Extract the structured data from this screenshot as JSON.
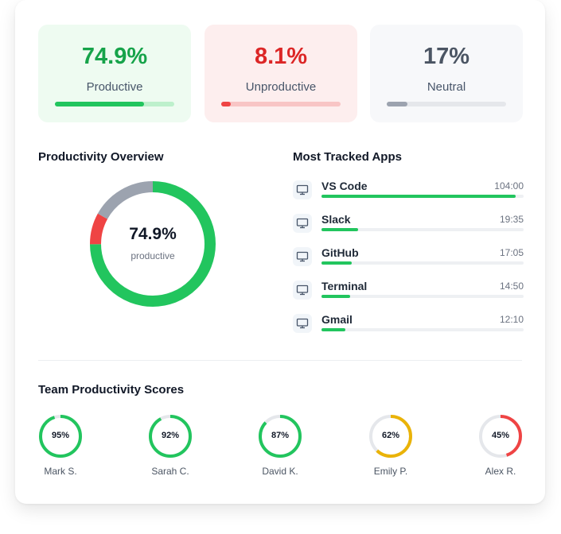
{
  "stats": {
    "productive": {
      "value": "74.9%",
      "label": "Productive",
      "fraction": 0.749,
      "color": "#16a34a"
    },
    "unproductive": {
      "value": "8.1%",
      "label": "Unproductive",
      "fraction": 0.081,
      "color": "#dc2626"
    },
    "neutral": {
      "value": "17%",
      "label": "Neutral",
      "fraction": 0.17,
      "color": "#6b7280"
    }
  },
  "overview": {
    "title": "Productivity Overview",
    "center_value": "74.9%",
    "center_label": "productive",
    "segments": [
      {
        "name": "productive",
        "fraction": 0.749,
        "color": "#22c55e"
      },
      {
        "name": "unproductive",
        "fraction": 0.081,
        "color": "#ef4444"
      },
      {
        "name": "neutral",
        "fraction": 0.17,
        "color": "#9ca3af"
      }
    ]
  },
  "apps": {
    "title": "Most Tracked Apps",
    "items": [
      {
        "name": "VS Code",
        "time": "104:00",
        "fraction": 0.96,
        "icon": "monitor-icon"
      },
      {
        "name": "Slack",
        "time": "19:35",
        "fraction": 0.18,
        "icon": "monitor-icon"
      },
      {
        "name": "GitHub",
        "time": "17:05",
        "fraction": 0.15,
        "icon": "monitor-icon"
      },
      {
        "name": "Terminal",
        "time": "14:50",
        "fraction": 0.14,
        "icon": "monitor-icon"
      },
      {
        "name": "Gmail",
        "time": "12:10",
        "fraction": 0.12,
        "icon": "monitor-icon"
      }
    ]
  },
  "team": {
    "title": "Team Productivity Scores",
    "members": [
      {
        "name": "Mark S.",
        "score": "95%",
        "fraction": 0.95,
        "color": "#22c55e"
      },
      {
        "name": "Sarah C.",
        "score": "92%",
        "fraction": 0.92,
        "color": "#22c55e"
      },
      {
        "name": "David K.",
        "score": "87%",
        "fraction": 0.87,
        "color": "#22c55e"
      },
      {
        "name": "Emily P.",
        "score": "62%",
        "fraction": 0.62,
        "color": "#eab308"
      },
      {
        "name": "Alex R.",
        "score": "45%",
        "fraction": 0.45,
        "color": "#ef4444"
      }
    ]
  }
}
